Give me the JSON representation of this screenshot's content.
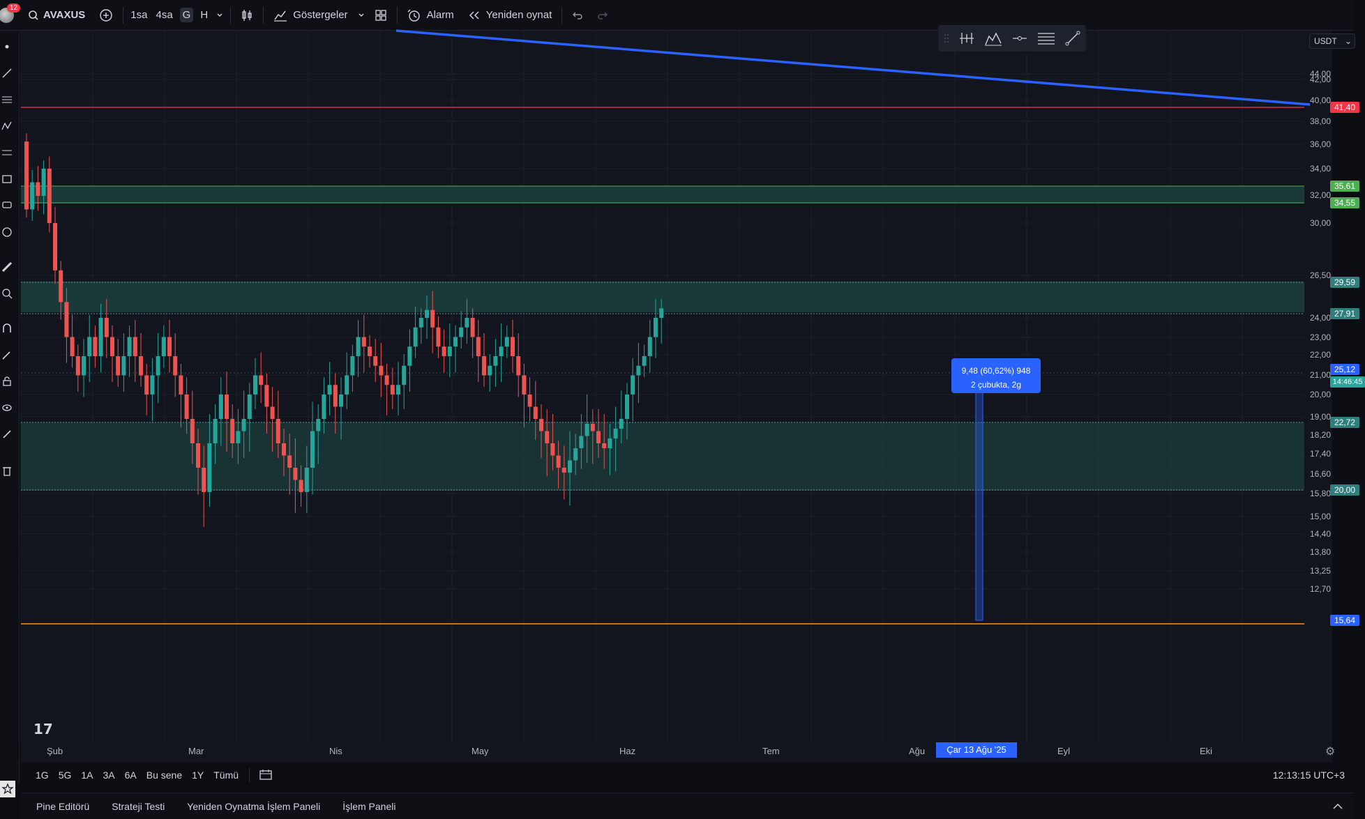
{
  "toolbar": {
    "notification_count": "12",
    "symbol": "AVAXUS",
    "timeframes": [
      "1sa",
      "4sa",
      "G",
      "H"
    ],
    "active_timeframe": "G",
    "indicators_label": "Göstergeler",
    "alarm_label": "Alarm",
    "replay_label": "Yeniden oynat",
    "icons": [
      "search-icon",
      "plus-icon",
      "chevron-down-icon",
      "candles-icon",
      "indicators-icon",
      "layout-icon",
      "alarm-icon",
      "replay-icon",
      "undo-icon",
      "redo-icon"
    ]
  },
  "chart": {
    "currency": "USDT",
    "price_ticks": [
      "44,00",
      "42,00",
      "40,00",
      "38,00",
      "36,00",
      "34,00",
      "32,00",
      "30,00",
      "26,50",
      "24,00",
      "23,00",
      "22,00",
      "21,00",
      "20,00",
      "19,00",
      "18,20",
      "17,40",
      "16,60",
      "15,80",
      "15,00",
      "14,40",
      "13,80",
      "13,25",
      "12,70"
    ],
    "tags": [
      {
        "value": "41,40",
        "color": "#f23645"
      },
      {
        "value": "35,61",
        "color": "#4caf50"
      },
      {
        "value": "34,55",
        "color": "#4caf50"
      },
      {
        "value": "29,59",
        "color": "#2f7f7f"
      },
      {
        "value": "27,91",
        "color": "#2f7f7f"
      },
      {
        "value": "25,12",
        "color": "#2962ff"
      },
      {
        "value": "14:46:45",
        "color": "#26a69a"
      },
      {
        "value": "22,72",
        "color": "#2f7f7f"
      },
      {
        "value": "20,00",
        "color": "#2f7f7f"
      },
      {
        "value": "15,64",
        "color": "#2962ff"
      }
    ],
    "months": [
      "Şub",
      "Mar",
      "Nis",
      "May",
      "Haz",
      "Tem",
      "Ağu",
      "Eyl",
      "Eki"
    ],
    "crosshair_date": "Çar 13 Ağu '25",
    "measure_line1": "9,48 (60,62%) 948",
    "measure_line2": "2 çubukta, 2g",
    "colors": {
      "up": "#26a69a",
      "down": "#ef5350",
      "trendline": "#2962ff",
      "support": "#ff9800",
      "resistance": "#f23645"
    }
  },
  "range": {
    "buttons": [
      "1G",
      "5G",
      "1A",
      "3A",
      "6A",
      "Bu sene",
      "1Y",
      "Tümü"
    ],
    "clock": "12:13:15 UTC+3"
  },
  "panels": [
    "Pine Editörü",
    "Strateji Testi",
    "Yeniden Oynatma İşlem Paneli",
    "İşlem Paneli"
  ]
}
